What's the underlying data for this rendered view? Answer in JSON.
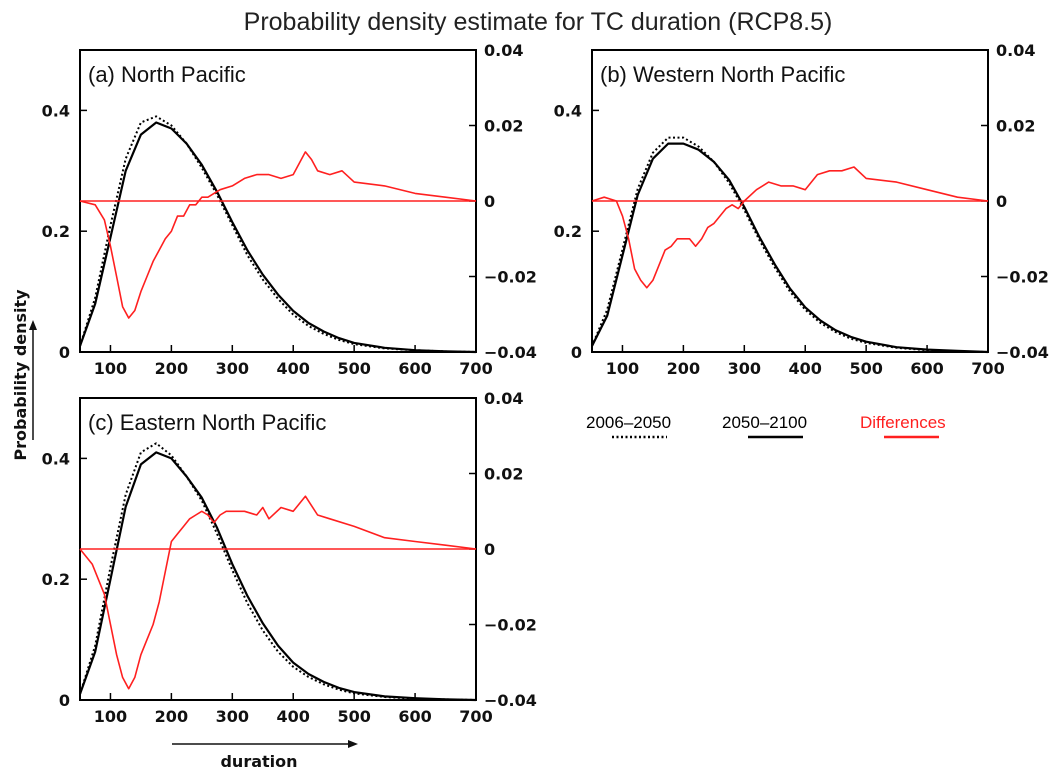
{
  "figure": {
    "title": "Probability density estimate for TC duration (RCP8.5)",
    "ylabel": "Probability density",
    "xlabel": "duration"
  },
  "legend": {
    "items": [
      {
        "label": "2006–2050",
        "style": "dotted",
        "color": "#000000"
      },
      {
        "label": "2050–2100",
        "style": "solid",
        "color": "#000000"
      },
      {
        "label": "Differences",
        "style": "solid",
        "color": "#ff2020"
      }
    ]
  },
  "colors": {
    "density": "#000000",
    "difference": "#ff2020"
  },
  "chart_data": [
    {
      "type": "line",
      "title": "(a) North Pacific",
      "xlim": [
        50,
        700
      ],
      "ylim": [
        0,
        0.5
      ],
      "y2lim": [
        -0.04,
        0.04
      ],
      "xticks": [
        "100",
        "200",
        "300",
        "400",
        "500",
        "600",
        "700"
      ],
      "yticks": [
        "0",
        "0.2",
        "0.4"
      ],
      "y2ticks": [
        "0.04",
        "0.02",
        "0",
        "−0.02",
        "−0.04"
      ],
      "series": [
        {
          "name": "2006–2050",
          "axis": "left",
          "x": [
            50,
            75,
            100,
            125,
            150,
            175,
            200,
            225,
            250,
            275,
            300,
            325,
            350,
            375,
            400,
            425,
            450,
            475,
            500,
            550,
            600,
            650,
            700
          ],
          "y": [
            0.01,
            0.09,
            0.21,
            0.32,
            0.38,
            0.39,
            0.375,
            0.345,
            0.305,
            0.26,
            0.21,
            0.16,
            0.12,
            0.088,
            0.062,
            0.043,
            0.03,
            0.02,
            0.013,
            0.006,
            0.003,
            0.001,
            0.0
          ]
        },
        {
          "name": "2050–2100",
          "axis": "left",
          "x": [
            50,
            75,
            100,
            125,
            150,
            175,
            200,
            225,
            250,
            275,
            300,
            325,
            350,
            375,
            400,
            425,
            450,
            475,
            500,
            550,
            600,
            650,
            700
          ],
          "y": [
            0.01,
            0.08,
            0.19,
            0.3,
            0.36,
            0.38,
            0.37,
            0.345,
            0.31,
            0.265,
            0.215,
            0.168,
            0.128,
            0.095,
            0.068,
            0.048,
            0.034,
            0.023,
            0.015,
            0.007,
            0.003,
            0.001,
            0.0
          ]
        },
        {
          "name": "Differences",
          "axis": "right",
          "x": [
            50,
            75,
            90,
            100,
            110,
            120,
            130,
            140,
            150,
            160,
            170,
            180,
            190,
            200,
            210,
            220,
            230,
            240,
            250,
            260,
            280,
            300,
            320,
            340,
            360,
            380,
            400,
            410,
            420,
            430,
            440,
            460,
            480,
            500,
            550,
            600,
            650,
            700
          ],
          "y": [
            0.0,
            -0.001,
            -0.005,
            -0.012,
            -0.02,
            -0.028,
            -0.031,
            -0.029,
            -0.024,
            -0.02,
            -0.016,
            -0.013,
            -0.01,
            -0.008,
            -0.004,
            -0.004,
            -0.001,
            -0.001,
            0.001,
            0.001,
            0.003,
            0.004,
            0.006,
            0.007,
            0.007,
            0.006,
            0.007,
            0.01,
            0.013,
            0.011,
            0.008,
            0.007,
            0.008,
            0.005,
            0.004,
            0.002,
            0.001,
            0.0
          ]
        },
        {
          "name": "zero line",
          "axis": "right",
          "x": [
            50,
            700
          ],
          "y": [
            0,
            0
          ]
        }
      ]
    },
    {
      "type": "line",
      "title": "(b) Western North Pacific",
      "xlim": [
        50,
        700
      ],
      "ylim": [
        0,
        0.5
      ],
      "y2lim": [
        -0.04,
        0.04
      ],
      "xticks": [
        "100",
        "200",
        "300",
        "400",
        "500",
        "600",
        "700"
      ],
      "yticks": [
        "0",
        "0.2",
        "0.4"
      ],
      "y2ticks": [
        "0.04",
        "0.02",
        "0",
        "−0.02",
        "−0.04"
      ],
      "series": [
        {
          "name": "2006–2050",
          "axis": "left",
          "x": [
            50,
            75,
            100,
            125,
            150,
            175,
            200,
            225,
            250,
            275,
            300,
            325,
            350,
            375,
            400,
            425,
            450,
            475,
            500,
            550,
            600,
            650,
            700
          ],
          "y": [
            0.01,
            0.07,
            0.17,
            0.27,
            0.33,
            0.355,
            0.355,
            0.34,
            0.315,
            0.28,
            0.235,
            0.185,
            0.14,
            0.1,
            0.07,
            0.048,
            0.033,
            0.022,
            0.015,
            0.007,
            0.003,
            0.001,
            0.0
          ]
        },
        {
          "name": "2050–2100",
          "axis": "left",
          "x": [
            50,
            75,
            100,
            125,
            150,
            175,
            200,
            225,
            250,
            275,
            300,
            325,
            350,
            375,
            400,
            425,
            450,
            475,
            500,
            550,
            600,
            650,
            700
          ],
          "y": [
            0.01,
            0.06,
            0.16,
            0.26,
            0.32,
            0.345,
            0.345,
            0.335,
            0.315,
            0.285,
            0.24,
            0.19,
            0.145,
            0.105,
            0.074,
            0.052,
            0.036,
            0.025,
            0.017,
            0.008,
            0.004,
            0.002,
            0.0
          ]
        },
        {
          "name": "Differences",
          "axis": "right",
          "x": [
            50,
            70,
            90,
            100,
            110,
            120,
            130,
            140,
            150,
            160,
            170,
            180,
            190,
            200,
            210,
            220,
            230,
            240,
            250,
            260,
            270,
            280,
            290,
            300,
            320,
            340,
            360,
            380,
            400,
            420,
            440,
            460,
            480,
            500,
            550,
            600,
            650,
            700
          ],
          "y": [
            0.0,
            0.001,
            0.0,
            -0.004,
            -0.01,
            -0.018,
            -0.021,
            -0.023,
            -0.021,
            -0.017,
            -0.013,
            -0.012,
            -0.01,
            -0.01,
            -0.01,
            -0.012,
            -0.01,
            -0.007,
            -0.006,
            -0.004,
            -0.002,
            -0.001,
            -0.002,
            0.0,
            0.003,
            0.005,
            0.004,
            0.004,
            0.003,
            0.007,
            0.008,
            0.008,
            0.009,
            0.006,
            0.005,
            0.003,
            0.001,
            0.0
          ]
        },
        {
          "name": "zero line",
          "axis": "right",
          "x": [
            50,
            700
          ],
          "y": [
            0,
            0
          ]
        }
      ]
    },
    {
      "type": "line",
      "title": "(c) Eastern North Pacific",
      "xlim": [
        50,
        700
      ],
      "ylim": [
        0,
        0.5
      ],
      "y2lim": [
        -0.04,
        0.04
      ],
      "xticks": [
        "100",
        "200",
        "300",
        "400",
        "500",
        "600",
        "700"
      ],
      "yticks": [
        "0",
        "0.2",
        "0.4"
      ],
      "y2ticks": [
        "0.04",
        "0.02",
        "0",
        "−0.02",
        "−0.04"
      ],
      "series": [
        {
          "name": "2006–2050",
          "axis": "left",
          "x": [
            50,
            75,
            100,
            125,
            150,
            175,
            200,
            225,
            250,
            275,
            300,
            325,
            350,
            375,
            400,
            425,
            450,
            475,
            500,
            550,
            600,
            650,
            700
          ],
          "y": [
            0.01,
            0.09,
            0.22,
            0.34,
            0.41,
            0.425,
            0.405,
            0.37,
            0.33,
            0.275,
            0.215,
            0.16,
            0.115,
            0.08,
            0.055,
            0.038,
            0.026,
            0.017,
            0.011,
            0.005,
            0.002,
            0.001,
            0.0
          ]
        },
        {
          "name": "2050–2100",
          "axis": "left",
          "x": [
            50,
            75,
            100,
            125,
            150,
            175,
            200,
            225,
            250,
            275,
            300,
            325,
            350,
            375,
            400,
            425,
            450,
            475,
            500,
            550,
            600,
            650,
            700
          ],
          "y": [
            0.01,
            0.08,
            0.2,
            0.32,
            0.39,
            0.41,
            0.4,
            0.37,
            0.335,
            0.285,
            0.225,
            0.172,
            0.127,
            0.09,
            0.062,
            0.043,
            0.03,
            0.02,
            0.013,
            0.006,
            0.003,
            0.001,
            0.0
          ]
        },
        {
          "name": "Differences",
          "axis": "right",
          "x": [
            50,
            70,
            90,
            100,
            110,
            120,
            130,
            140,
            150,
            160,
            170,
            180,
            190,
            200,
            210,
            220,
            230,
            240,
            250,
            260,
            270,
            280,
            290,
            300,
            320,
            340,
            350,
            360,
            380,
            400,
            420,
            440,
            460,
            500,
            550,
            600,
            650,
            700
          ],
          "y": [
            0.0,
            -0.004,
            -0.012,
            -0.02,
            -0.028,
            -0.034,
            -0.037,
            -0.034,
            -0.028,
            -0.024,
            -0.02,
            -0.014,
            -0.006,
            0.002,
            0.004,
            0.006,
            0.008,
            0.009,
            0.01,
            0.009,
            0.007,
            0.009,
            0.01,
            0.01,
            0.01,
            0.009,
            0.011,
            0.008,
            0.011,
            0.01,
            0.014,
            0.009,
            0.008,
            0.006,
            0.003,
            0.002,
            0.001,
            0.0
          ]
        },
        {
          "name": "zero line",
          "axis": "right",
          "x": [
            50,
            700
          ],
          "y": [
            0,
            0
          ]
        }
      ]
    }
  ]
}
